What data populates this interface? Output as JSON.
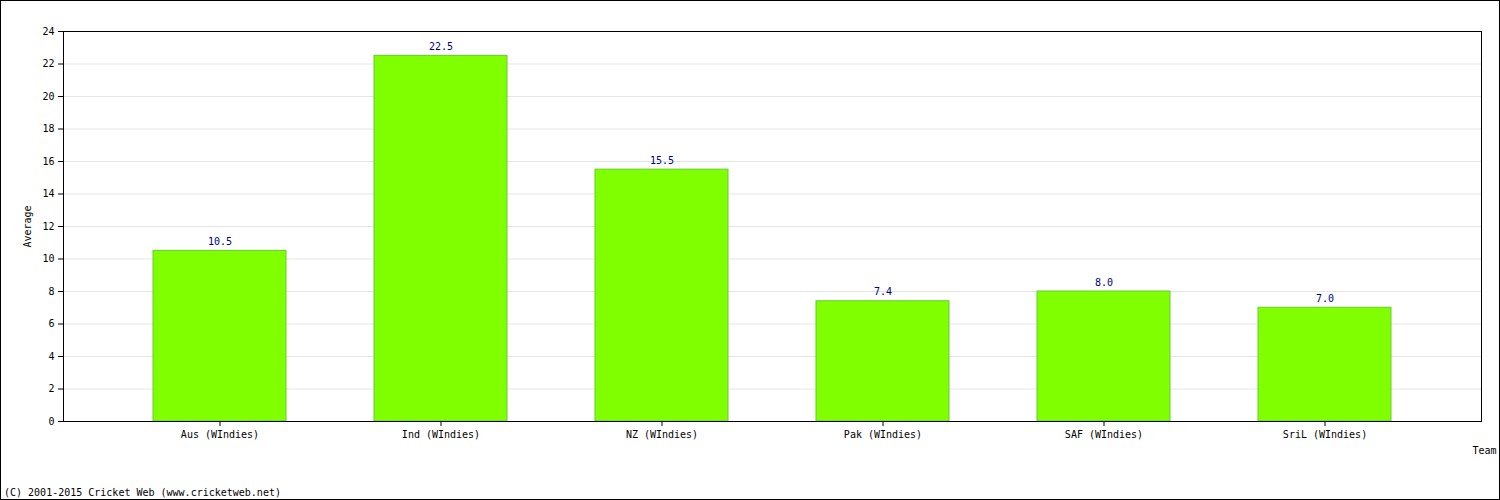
{
  "chart_data": {
    "type": "bar",
    "categories": [
      "Aus (WIndies)",
      "Ind (WIndies)",
      "NZ (WIndies)",
      "Pak (WIndies)",
      "SAF (WIndies)",
      "SriL (WIndies)"
    ],
    "values": [
      10.5,
      22.5,
      15.5,
      7.4,
      8.0,
      7.0
    ],
    "value_labels": [
      "10.5",
      "22.5",
      "15.5",
      "7.4",
      "8.0",
      "7.0"
    ],
    "data_labels": true,
    "color": "#7fff00",
    "x_label": "Team",
    "y_label": "Average",
    "ylim": [
      0,
      24
    ],
    "yticks": [
      0,
      2,
      4,
      6,
      8,
      10,
      12,
      14,
      16,
      18,
      20,
      22,
      24
    ],
    "grid": true,
    "caption": "(C) 2001-2015 Cricket Web (www.cricketweb.net)"
  }
}
